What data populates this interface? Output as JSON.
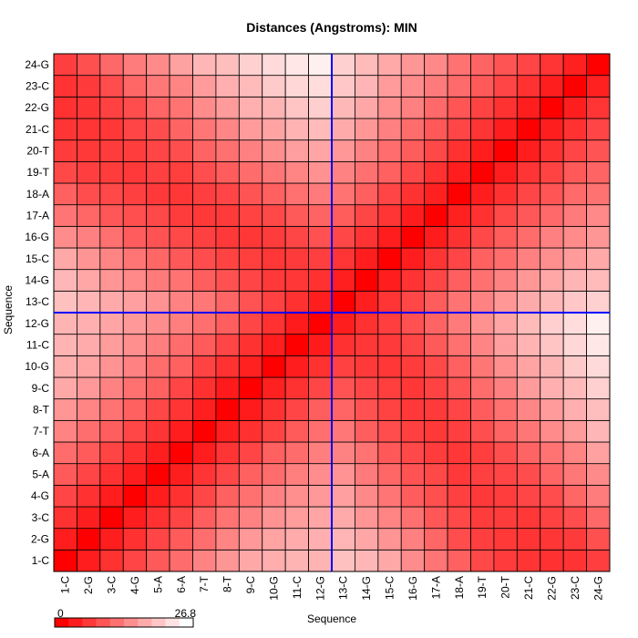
{
  "chart_data": {
    "type": "heatmap",
    "title": "Distances (Angstroms):  MIN",
    "xlabel": "Sequence",
    "ylabel": "Sequence",
    "categories": [
      "1-C",
      "2-G",
      "3-C",
      "4-G",
      "5-A",
      "6-A",
      "7-T",
      "8-T",
      "9-C",
      "10-G",
      "11-C",
      "12-G",
      "13-C",
      "14-G",
      "15-C",
      "16-G",
      "17-A",
      "18-A",
      "19-T",
      "20-T",
      "21-C",
      "22-G",
      "23-C",
      "24-G"
    ],
    "value_range": [
      0,
      26.8
    ],
    "colorbar": {
      "min_label": "0",
      "max_label": "26.8",
      "low_color": "#ff0000",
      "high_color": "#ffffff"
    },
    "divider_after_index": 12,
    "divider_color": "#0000ff",
    "grid": true,
    "values": [
      [
        0.0,
        3.1,
        5.3,
        7.2,
        9.5,
        11.4,
        13.8,
        15.8,
        17.7,
        18.2,
        18.9,
        18.9,
        20.2,
        19.1,
        17.7,
        14.7,
        12.2,
        10.2,
        7.6,
        6.2,
        5.6,
        5.2,
        5.4,
        6.6
      ],
      [
        3.1,
        0.0,
        3.2,
        5.1,
        7.3,
        9.6,
        11.6,
        13.9,
        16.0,
        17.1,
        18.0,
        18.4,
        19.0,
        17.6,
        15.6,
        13.4,
        10.7,
        8.1,
        6.6,
        5.9,
        5.5,
        5.7,
        6.1,
        8.4
      ],
      [
        5.3,
        3.2,
        0.0,
        3.1,
        5.1,
        7.1,
        9.9,
        12.1,
        13.7,
        15.4,
        16.4,
        17.3,
        17.9,
        15.7,
        14.0,
        11.8,
        9.1,
        7.6,
        6.3,
        6.3,
        5.8,
        6.8,
        8.0,
        10.9
      ],
      [
        7.2,
        5.1,
        3.1,
        0.0,
        3.0,
        5.1,
        7.5,
        10.1,
        11.9,
        13.6,
        14.9,
        16.0,
        16.7,
        14.3,
        12.3,
        9.8,
        8.3,
        6.7,
        6.0,
        6.4,
        7.2,
        8.1,
        10.8,
        13.0
      ],
      [
        9.5,
        7.3,
        5.1,
        3.0,
        0.0,
        3.2,
        5.6,
        7.5,
        10.2,
        11.4,
        13.3,
        14.8,
        15.3,
        12.8,
        10.8,
        8.7,
        7.6,
        6.0,
        6.7,
        7.3,
        8.1,
        10.6,
        12.6,
        14.5
      ],
      [
        11.4,
        9.6,
        7.1,
        5.1,
        3.2,
        0.0,
        3.0,
        5.6,
        7.3,
        10.1,
        11.3,
        13.3,
        13.7,
        12.1,
        9.3,
        7.7,
        6.3,
        5.8,
        6.5,
        8.2,
        10.5,
        12.1,
        13.9,
        16.9
      ],
      [
        13.8,
        11.6,
        9.9,
        7.5,
        5.6,
        3.0,
        0.0,
        3.3,
        5.0,
        7.0,
        9.6,
        11.7,
        12.5,
        9.9,
        8.1,
        6.7,
        5.9,
        6.6,
        8.2,
        10.5,
        12.4,
        14.6,
        16.3,
        19.1
      ],
      [
        15.8,
        13.9,
        12.1,
        10.1,
        7.5,
        5.6,
        3.3,
        0.0,
        2.8,
        5.3,
        7.2,
        9.9,
        10.6,
        8.5,
        7.0,
        6.0,
        6.1,
        7.3,
        9.8,
        11.9,
        14.1,
        16.3,
        18.4,
        20.0
      ],
      [
        17.7,
        16.0,
        13.7,
        11.9,
        10.2,
        7.3,
        5.0,
        2.8,
        0.0,
        3.4,
        5.3,
        7.4,
        8.6,
        7.3,
        6.5,
        5.8,
        6.9,
        8.8,
        11.4,
        13.4,
        16.3,
        18.4,
        19.5,
        21.9
      ],
      [
        18.2,
        17.1,
        15.4,
        13.6,
        11.4,
        10.1,
        7.0,
        5.3,
        3.4,
        0.0,
        3.1,
        5.2,
        6.8,
        6.0,
        5.8,
        6.3,
        7.7,
        10.1,
        12.4,
        15.0,
        17.1,
        18.9,
        21.2,
        22.9
      ],
      [
        18.9,
        18.0,
        16.4,
        14.9,
        13.3,
        11.3,
        9.6,
        7.2,
        5.3,
        3.1,
        0.0,
        2.8,
        5.2,
        5.8,
        6.1,
        7.4,
        9.5,
        11.8,
        14.0,
        16.6,
        18.8,
        20.6,
        22.6,
        24.3
      ],
      [
        18.9,
        18.4,
        17.3,
        16.0,
        14.8,
        13.3,
        11.7,
        9.9,
        7.4,
        5.2,
        2.8,
        0.0,
        3.2,
        5.2,
        6.6,
        8.5,
        10.5,
        12.9,
        15.2,
        17.3,
        19.6,
        21.6,
        23.2,
        25.2
      ],
      [
        20.2,
        19.0,
        17.9,
        16.7,
        15.3,
        13.7,
        12.5,
        10.6,
        8.6,
        6.8,
        5.2,
        3.2,
        0.0,
        3.3,
        5.5,
        7.5,
        9.7,
        12.1,
        13.7,
        15.9,
        17.9,
        19.3,
        20.9,
        21.9
      ],
      [
        19.1,
        17.6,
        15.7,
        14.3,
        12.8,
        12.1,
        9.9,
        8.5,
        7.3,
        6.0,
        5.8,
        5.2,
        3.3,
        0.0,
        3.1,
        5.4,
        7.4,
        10.0,
        11.9,
        13.7,
        15.9,
        17.6,
        19.0,
        19.6
      ],
      [
        17.7,
        15.6,
        14.0,
        12.3,
        10.8,
        9.3,
        8.1,
        7.0,
        6.5,
        5.8,
        6.1,
        6.6,
        5.5,
        3.1,
        0.0,
        3.1,
        5.6,
        7.2,
        10.1,
        11.5,
        13.5,
        15.0,
        16.3,
        17.8
      ],
      [
        14.7,
        13.4,
        11.8,
        9.8,
        8.7,
        7.7,
        6.7,
        6.0,
        5.8,
        6.3,
        7.4,
        8.5,
        7.5,
        5.4,
        3.1,
        0.0,
        2.9,
        5.3,
        7.7,
        9.7,
        11.4,
        13.5,
        14.6,
        15.8
      ],
      [
        12.2,
        10.7,
        9.1,
        8.3,
        7.6,
        6.3,
        5.9,
        6.1,
        6.9,
        7.7,
        9.5,
        10.5,
        9.7,
        7.4,
        5.6,
        2.9,
        0.0,
        3.4,
        5.1,
        7.6,
        9.3,
        11.0,
        12.9,
        14.4
      ],
      [
        10.2,
        8.1,
        7.6,
        6.7,
        6.0,
        5.8,
        6.6,
        7.3,
        8.8,
        10.1,
        11.8,
        12.9,
        12.1,
        10.0,
        7.2,
        5.3,
        3.4,
        0.0,
        3.1,
        5.2,
        7.4,
        8.9,
        11.1,
        12.0
      ],
      [
        7.6,
        6.6,
        6.3,
        6.0,
        6.7,
        6.5,
        8.2,
        9.8,
        11.4,
        12.4,
        14.0,
        15.2,
        13.7,
        11.9,
        10.1,
        7.7,
        5.1,
        3.1,
        0.0,
        3.1,
        5.5,
        7.0,
        9.4,
        10.5
      ],
      [
        6.2,
        5.9,
        6.3,
        6.4,
        7.3,
        8.2,
        10.5,
        11.9,
        13.4,
        15.0,
        16.6,
        17.3,
        15.9,
        13.7,
        11.5,
        9.7,
        7.6,
        5.2,
        3.1,
        0.0,
        3.1,
        5.3,
        7.2,
        8.8
      ],
      [
        5.6,
        5.5,
        5.8,
        7.2,
        8.1,
        10.5,
        12.4,
        14.1,
        16.3,
        17.1,
        18.8,
        19.6,
        17.9,
        15.9,
        13.5,
        11.4,
        9.3,
        7.4,
        5.5,
        3.1,
        0.0,
        3.2,
        5.2,
        7.2
      ],
      [
        5.2,
        5.7,
        6.8,
        8.1,
        10.6,
        12.1,
        14.6,
        16.3,
        18.4,
        18.9,
        20.6,
        21.6,
        19.3,
        17.6,
        15.0,
        13.5,
        11.0,
        8.9,
        7.0,
        5.3,
        3.2,
        0.0,
        3.2,
        5.6
      ],
      [
        5.4,
        6.1,
        8.0,
        10.8,
        12.6,
        13.9,
        16.3,
        18.4,
        19.5,
        21.2,
        22.6,
        23.2,
        20.9,
        19.0,
        16.3,
        14.6,
        12.9,
        11.1,
        9.4,
        7.2,
        5.2,
        3.2,
        0.0,
        3.4
      ],
      [
        6.6,
        8.4,
        10.9,
        13.0,
        14.5,
        16.9,
        19.1,
        20.0,
        21.9,
        22.9,
        24.3,
        25.2,
        21.9,
        19.6,
        17.8,
        15.8,
        14.4,
        12.0,
        10.5,
        8.8,
        7.2,
        5.6,
        3.4,
        0.0
      ]
    ]
  }
}
